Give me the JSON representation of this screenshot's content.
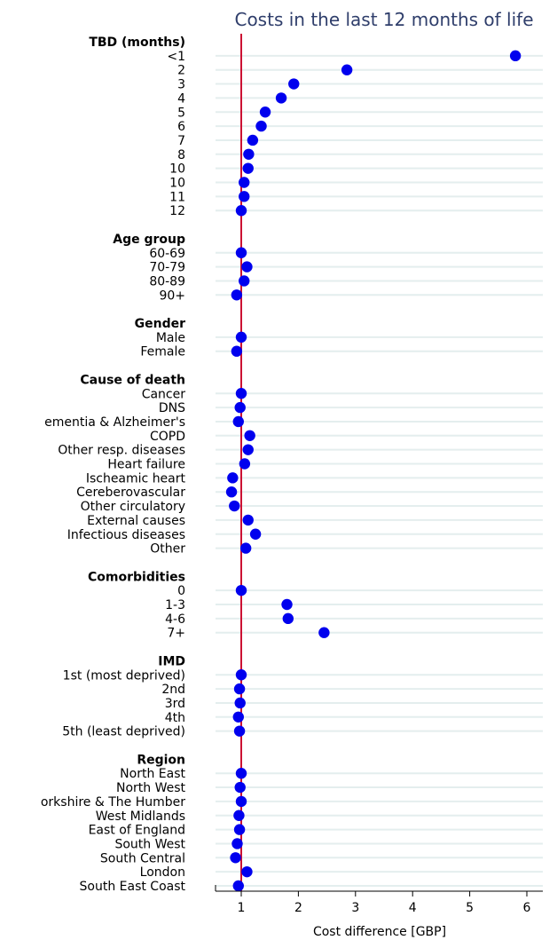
{
  "chart_data": {
    "type": "scatter",
    "title": "Costs in the last 12 months of life",
    "xlabel": "Cost difference [GBP]",
    "ylabel": "",
    "xlim": [
      0.5,
      6.3
    ],
    "xticks": [
      1,
      2,
      3,
      4,
      5,
      6
    ],
    "reference_line": 1,
    "grid": true,
    "colors": {
      "points": "#0000ee",
      "reference_line": "#cc1133",
      "title": "#2f3e6b",
      "grid": "#e4eeee"
    },
    "groups": [
      {
        "name": "TBD (months)",
        "rows": [
          {
            "label": "<1",
            "value": 5.8
          },
          {
            "label": "2",
            "value": 2.85
          },
          {
            "label": "3",
            "value": 1.92
          },
          {
            "label": "4",
            "value": 1.7
          },
          {
            "label": "5",
            "value": 1.42
          },
          {
            "label": "6",
            "value": 1.35
          },
          {
            "label": "7",
            "value": 1.2
          },
          {
            "label": "8",
            "value": 1.13
          },
          {
            "label": "10",
            "value": 1.12
          },
          {
            "label": "10",
            "value": 1.05
          },
          {
            "label": "11",
            "value": 1.05
          },
          {
            "label": "12",
            "value": 1.0
          }
        ]
      },
      {
        "name": "Age group",
        "rows": [
          {
            "label": "60-69",
            "value": 1.0
          },
          {
            "label": "70-79",
            "value": 1.1
          },
          {
            "label": "80-89",
            "value": 1.05
          },
          {
            "label": "90+",
            "value": 0.92
          }
        ]
      },
      {
        "name": "Gender",
        "rows": [
          {
            "label": "Male",
            "value": 1.0
          },
          {
            "label": "Female",
            "value": 0.92
          }
        ]
      },
      {
        "name": "Cause of death",
        "rows": [
          {
            "label": "Cancer",
            "value": 1.0
          },
          {
            "label": "DNS",
            "value": 0.98
          },
          {
            "label": "ementia & Alzheimer's",
            "value": 0.95
          },
          {
            "label": "COPD",
            "value": 1.15
          },
          {
            "label": "Other resp. diseases",
            "value": 1.12
          },
          {
            "label": "Heart failure",
            "value": 1.06
          },
          {
            "label": "Ischeamic heart",
            "value": 0.85
          },
          {
            "label": "Cereberovascular",
            "value": 0.83
          },
          {
            "label": "Other circulatory",
            "value": 0.88
          },
          {
            "label": "External causes",
            "value": 1.12
          },
          {
            "label": "Infectious diseases",
            "value": 1.25
          },
          {
            "label": "Other",
            "value": 1.08
          }
        ]
      },
      {
        "name": "Comorbidities",
        "rows": [
          {
            "label": "0",
            "value": 1.0
          },
          {
            "label": "1-3",
            "value": 1.8
          },
          {
            "label": "4-6",
            "value": 1.82
          },
          {
            "label": "7+",
            "value": 2.45
          }
        ]
      },
      {
        "name": "IMD",
        "rows": [
          {
            "label": "1st (most deprived)",
            "value": 1.0
          },
          {
            "label": "2nd",
            "value": 0.97
          },
          {
            "label": "3rd",
            "value": 0.98
          },
          {
            "label": "4th",
            "value": 0.95
          },
          {
            "label": "5th (least deprived)",
            "value": 0.97
          }
        ]
      },
      {
        "name": "Region",
        "rows": [
          {
            "label": "North East",
            "value": 1.0
          },
          {
            "label": "North West",
            "value": 0.98
          },
          {
            "label": "orkshire & The Humber",
            "value": 1.0
          },
          {
            "label": "West Midlands",
            "value": 0.96
          },
          {
            "label": "East of England",
            "value": 0.97
          },
          {
            "label": "South West",
            "value": 0.93
          },
          {
            "label": "South Central",
            "value": 0.9
          },
          {
            "label": "London",
            "value": 1.1
          },
          {
            "label": "South East Coast",
            "value": 0.95
          }
        ]
      }
    ]
  }
}
